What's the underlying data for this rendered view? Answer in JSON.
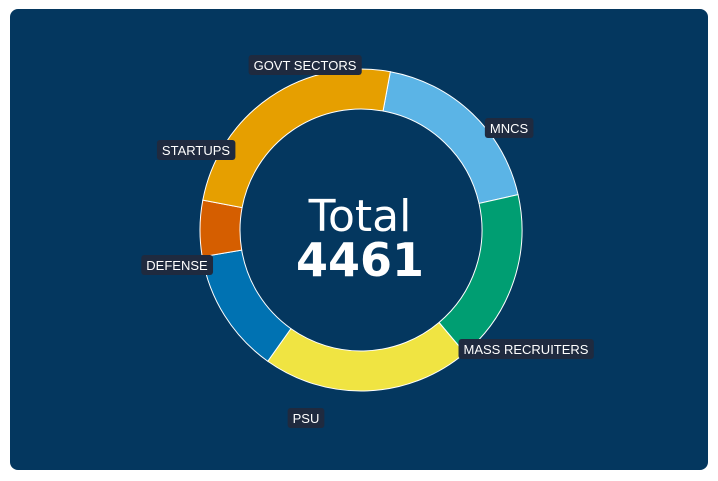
{
  "chart_data": {
    "type": "pie",
    "variant": "donut",
    "center": {
      "title": "Total",
      "value": "4461"
    },
    "slices": [
      {
        "label": "MNCS",
        "value": 828,
        "color": "#5bb4e6"
      },
      {
        "label": "MASS RECRUITERS",
        "value": 775,
        "color": "#009e72"
      },
      {
        "label": "PSU",
        "value": 936,
        "color": "#f0e442"
      },
      {
        "label": "DEFENSE",
        "value": 558,
        "color": "#0072b2"
      },
      {
        "label": "STARTUPS",
        "value": 251,
        "color": "#d55e00"
      },
      {
        "label": "GOVT SECTORS",
        "value": 1113,
        "color": "#e69f00"
      }
    ],
    "total": 4461,
    "start_angle_deg": 10.5
  }
}
